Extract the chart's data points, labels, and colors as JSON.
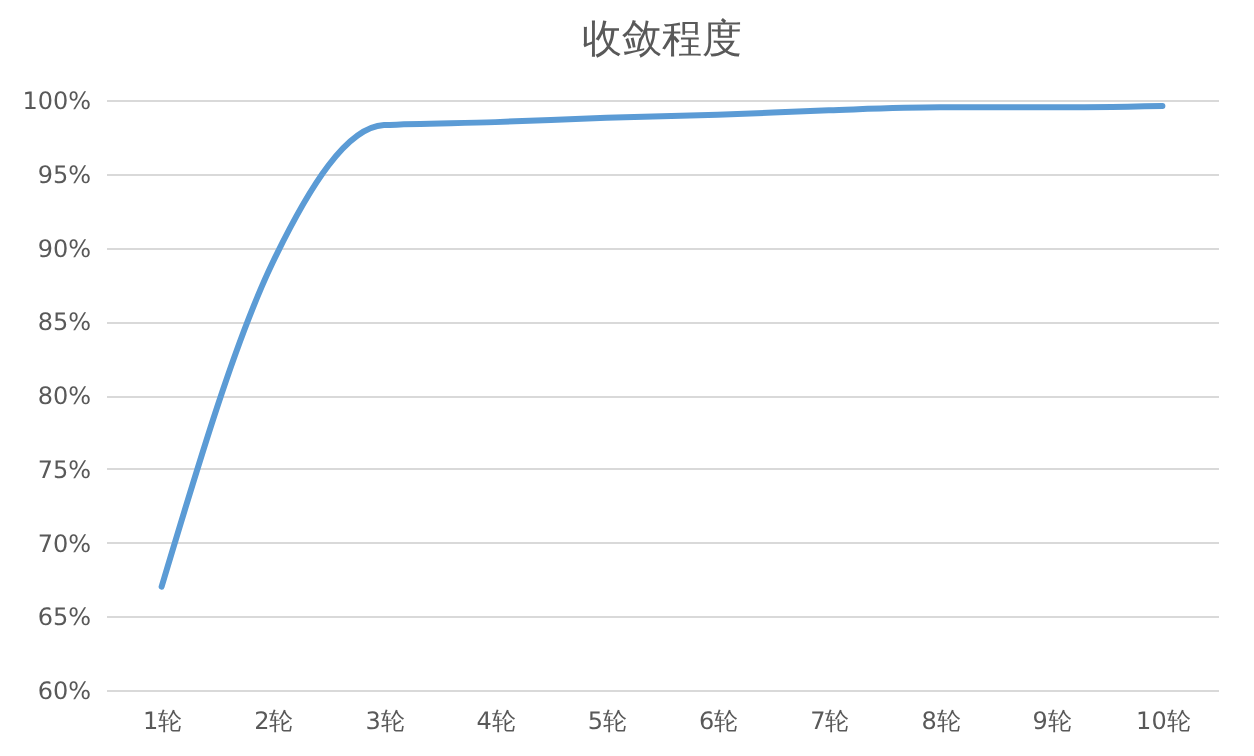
{
  "chart_data": {
    "type": "line",
    "title": "收敛程度",
    "categories": [
      "1轮",
      "2轮",
      "3轮",
      "4轮",
      "5轮",
      "6轮",
      "7轮",
      "8轮",
      "9轮",
      "10轮"
    ],
    "series": [
      {
        "color": "#5b9bd5",
        "values": [
          67,
          89,
          98.3,
          98.5,
          98.8,
          99,
          99.3,
          99.5,
          99.5,
          99.6
        ]
      }
    ],
    "ylim": [
      60,
      100
    ],
    "yticks": [
      {
        "value": 60,
        "label": "60%"
      },
      {
        "value": 65,
        "label": "65%"
      },
      {
        "value": 70,
        "label": "70%"
      },
      {
        "value": 75,
        "label": "75%"
      },
      {
        "value": 80,
        "label": "80%"
      },
      {
        "value": 85,
        "label": "85%"
      },
      {
        "value": 90,
        "label": "90%"
      },
      {
        "value": 95,
        "label": "95%"
      },
      {
        "value": 100,
        "label": "100%"
      }
    ],
    "grid": "y",
    "marker": "none",
    "line_style": "solid",
    "legend": false
  }
}
